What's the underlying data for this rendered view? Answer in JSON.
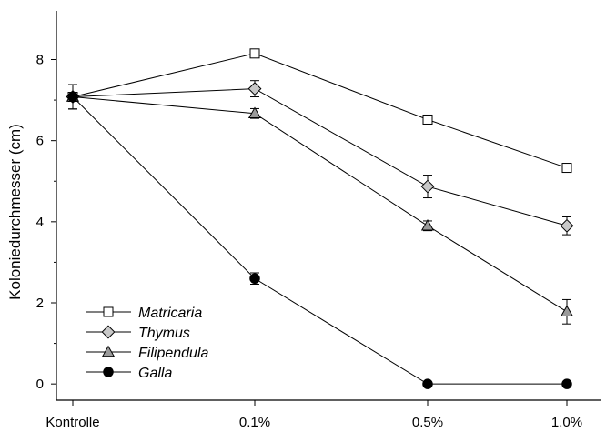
{
  "chart_data": {
    "type": "line",
    "ylabel": "Koloniedurchmesser (cm)",
    "xlabel": "",
    "categories": [
      "Kontrolle",
      "0.1%",
      "0.5%",
      "1.0%"
    ],
    "ylim": [
      -0.4,
      9.2
    ],
    "yticks": [
      0,
      2,
      4,
      6,
      8
    ],
    "grid": false,
    "legend_position": "bottom-left",
    "series": [
      {
        "name": "Matricaria",
        "marker": "square",
        "fill": "#ffffff",
        "values": [
          7.08,
          8.15,
          6.52,
          5.33
        ],
        "errors": [
          0.3,
          0.1,
          0.1,
          0.06
        ]
      },
      {
        "name": "Thymus",
        "marker": "diamond",
        "fill": "#c8c8c8",
        "values": [
          7.08,
          7.28,
          4.87,
          3.9
        ],
        "errors": [
          0.3,
          0.2,
          0.28,
          0.22
        ]
      },
      {
        "name": "Filipendula",
        "marker": "triangle",
        "fill": "#9a9a9a",
        "values": [
          7.08,
          6.67,
          3.9,
          1.78
        ],
        "errors": [
          0.3,
          0.12,
          0.12,
          0.3
        ]
      },
      {
        "name": "Galla",
        "marker": "circle",
        "fill": "#000000",
        "values": [
          7.08,
          2.6,
          0.0,
          0.0
        ],
        "errors": [
          0.3,
          0.14,
          0,
          0
        ]
      }
    ]
  }
}
